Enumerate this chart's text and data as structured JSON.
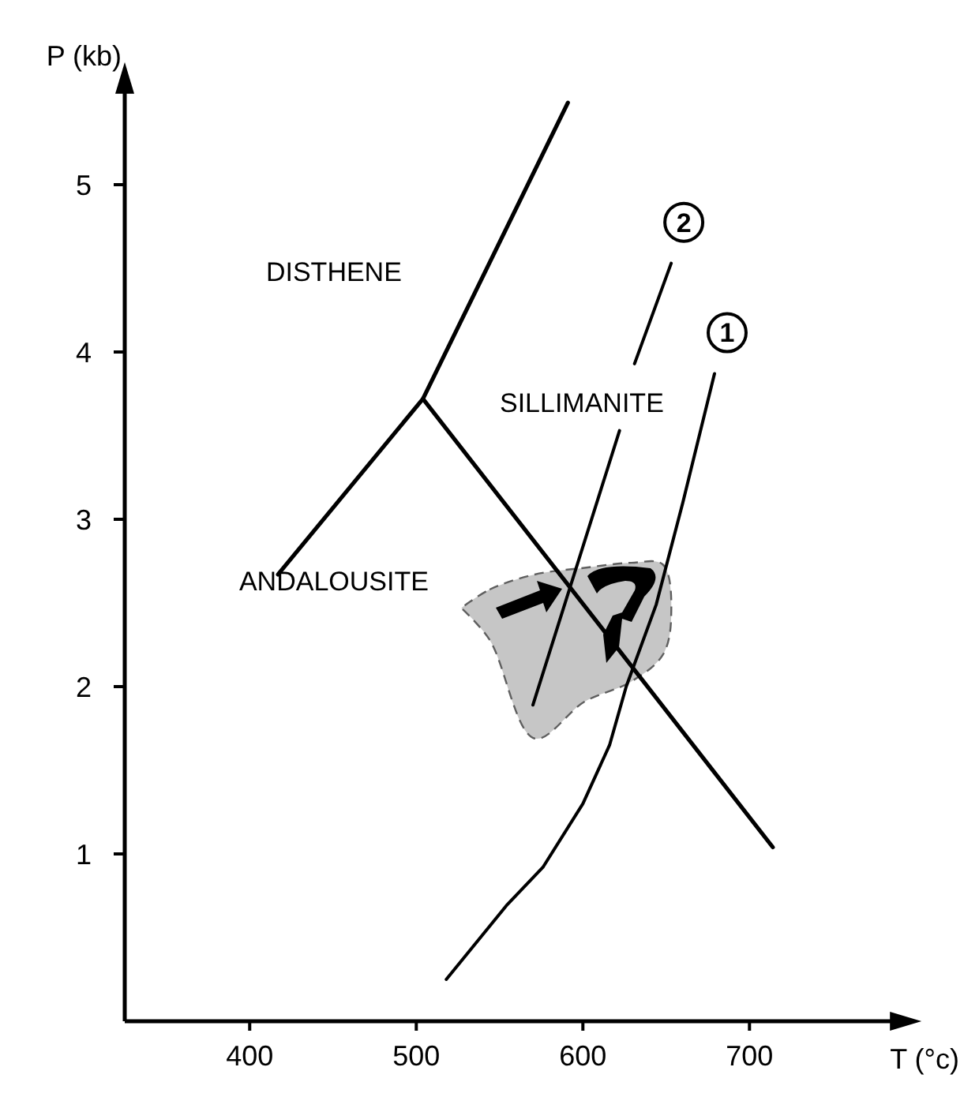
{
  "chart_data": {
    "type": "line",
    "xlabel": "T (°c)",
    "ylabel": "P (kb)",
    "xlim": [
      325,
      790
    ],
    "ylim": [
      0,
      5.6
    ],
    "xticks": [
      400,
      500,
      600,
      700
    ],
    "yticks": [
      1,
      2,
      3,
      4,
      5
    ],
    "series": [
      {
        "type": "area",
        "color": "#bdbdbd",
        "x": [
          527,
          544,
          571,
          601,
          629,
          648,
          653,
          648,
          629,
          601,
          571,
          544,
          527
        ],
        "values": [
          2.47,
          2.58,
          2.67,
          2.71,
          2.74,
          2.73,
          2.42,
          2.19,
          2.03,
          1.91,
          1.69,
          2.28,
          2.47
        ]
      },
      {
        "color": "#000000",
        "x": [
          417,
          504,
          591
        ],
        "values": [
          2.67,
          3.72,
          5.49
        ]
      },
      {
        "color": "#000000",
        "x": [
          504,
          714
        ],
        "values": [
          3.72,
          1.04
        ]
      },
      {
        "name": "2",
        "color": "#000000",
        "x": [
          570,
          622,
          626,
          631,
          653
        ],
        "values": [
          1.89,
          3.53,
          null,
          3.93,
          4.53
        ]
      },
      {
        "name": "1",
        "color": "#000000",
        "x": [
          518,
          554,
          576,
          600,
          616,
          626,
          644,
          660,
          679
        ],
        "values": [
          0.25,
          0.69,
          0.92,
          1.3,
          1.65,
          2.0,
          2.49,
          3.1,
          3.87
        ]
      }
    ],
    "annotations": [
      "DISTHENE",
      "SILLIMANITE",
      "ANDALOUSITE"
    ]
  }
}
